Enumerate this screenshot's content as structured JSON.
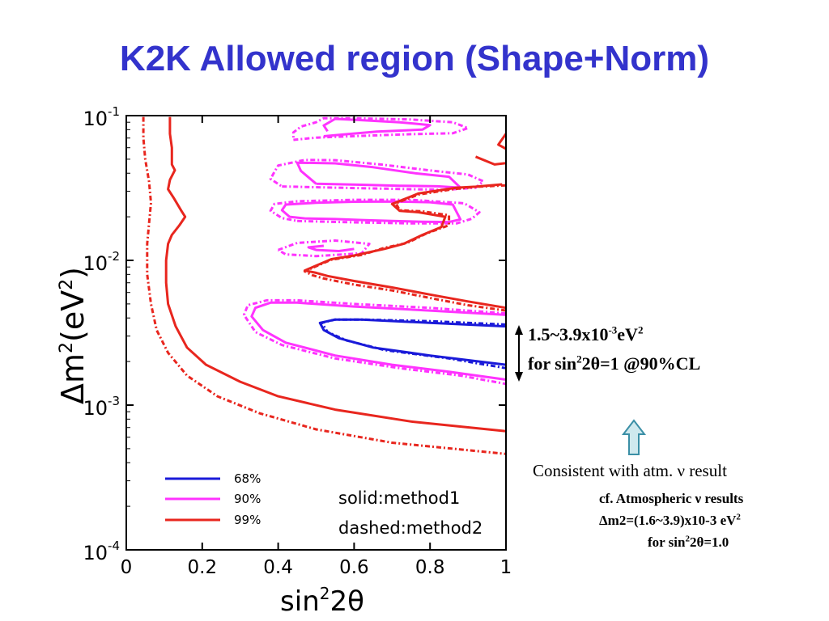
{
  "title": "K2K Allowed region (Shape+Norm)",
  "result": {
    "line1_base": "1.5~3.9x10",
    "line1_exp": "-3",
    "line1_unit": "eV",
    "line1_unit_exp": "2",
    "line2_pre": "for sin",
    "line2_exp": "2",
    "line2_post": "2θ=1 @90%CL"
  },
  "consistent": "Consistent with atm. ν result",
  "cf": {
    "line1": "cf. Atmospheric ν results",
    "line2": "Δm2=(1.6~3.9)x10-3 eV",
    "line2_exp": "2",
    "line3_pre": "for sin",
    "line3_exp": "2",
    "line3_post": "2θ=1.0"
  },
  "colors": {
    "title": "#3333cc",
    "c68": "#1a1ad9",
    "c90": "#ff33ff",
    "c99": "#e8261e"
  },
  "icons": [
    "up-arrow-outline-icon",
    "double-headed-arrow-icon"
  ],
  "chart_data": {
    "type": "contour",
    "xlabel_base": "sin",
    "xlabel_exp": "2",
    "xlabel_post": "2θ",
    "ylabel_base": "Δm",
    "ylabel_exp": "2",
    "ylabel_post": "(eV",
    "ylabel_exp2": "2",
    "ylabel_close": ")",
    "xlim": [
      0,
      1
    ],
    "ylim": [
      0.0001,
      0.1
    ],
    "yscale": "log",
    "xticks": [
      "0",
      "0.2",
      "0.4",
      "0.6",
      "0.8",
      "1"
    ],
    "yticks": [
      {
        "base": "10",
        "exp": "-1",
        "value": 0.1
      },
      {
        "base": "10",
        "exp": "-2",
        "value": 0.01
      },
      {
        "base": "10",
        "exp": "-3",
        "value": 0.001
      },
      {
        "base": "10",
        "exp": "-4",
        "value": 0.0001
      }
    ],
    "legend": [
      {
        "label": "68%",
        "color": "#1a1ad9"
      },
      {
        "label": "90%",
        "color": "#ff33ff"
      },
      {
        "label": "99%",
        "color": "#e8261e"
      }
    ],
    "annotation1": "solid:method1",
    "annotation2": "dashed:method2",
    "contours": [
      {
        "level": "68%",
        "color": "#1a1ad9",
        "style": "solid",
        "points": [
          [
            1.0,
            0.0035
          ],
          [
            0.8,
            0.0037
          ],
          [
            0.62,
            0.0039
          ],
          [
            0.55,
            0.0039
          ],
          [
            0.51,
            0.0037
          ],
          [
            0.52,
            0.0033
          ],
          [
            0.56,
            0.0029
          ],
          [
            0.65,
            0.0025
          ],
          [
            0.8,
            0.0022
          ],
          [
            1.0,
            0.0019
          ]
        ]
      },
      {
        "level": "68%",
        "color": "#1a1ad9",
        "style": "dashed",
        "points": [
          [
            1.0,
            0.0036
          ],
          [
            0.8,
            0.0038
          ],
          [
            0.62,
            0.0039
          ],
          [
            0.55,
            0.0039
          ],
          [
            0.515,
            0.0037
          ],
          [
            0.53,
            0.0032
          ],
          [
            0.58,
            0.0028
          ],
          [
            0.68,
            0.0024
          ],
          [
            0.85,
            0.0021
          ],
          [
            1.0,
            0.0018
          ]
        ]
      },
      {
        "level": "90%",
        "color": "#ff33ff",
        "style": "solid",
        "points": [
          [
            1.0,
            0.0042
          ],
          [
            0.8,
            0.0045
          ],
          [
            0.6,
            0.0048
          ],
          [
            0.45,
            0.0051
          ],
          [
            0.38,
            0.0051
          ],
          [
            0.34,
            0.0047
          ],
          [
            0.33,
            0.0041
          ],
          [
            0.36,
            0.0033
          ],
          [
            0.42,
            0.0027
          ],
          [
            0.55,
            0.0022
          ],
          [
            0.7,
            0.0019
          ],
          [
            0.85,
            0.0017
          ],
          [
            1.0,
            0.0015
          ]
        ]
      },
      {
        "level": "90%",
        "color": "#ff33ff",
        "style": "dashed",
        "points": [
          [
            1.0,
            0.0043
          ],
          [
            0.8,
            0.0047
          ],
          [
            0.6,
            0.005
          ],
          [
            0.45,
            0.0053
          ],
          [
            0.37,
            0.0053
          ],
          [
            0.32,
            0.0049
          ],
          [
            0.31,
            0.0042
          ],
          [
            0.34,
            0.0032
          ],
          [
            0.41,
            0.0026
          ],
          [
            0.55,
            0.0021
          ],
          [
            0.72,
            0.0018
          ],
          [
            0.88,
            0.0016
          ],
          [
            1.0,
            0.0014
          ]
        ]
      },
      {
        "level": "90%",
        "color": "#ff33ff",
        "style": "solid",
        "points": [
          [
            0.52,
            0.0126
          ],
          [
            0.48,
            0.0123
          ],
          [
            0.5,
            0.0118
          ],
          [
            0.56,
            0.0116
          ],
          [
            0.6,
            0.012
          ]
        ]
      },
      {
        "level": "90%",
        "color": "#ff33ff",
        "style": "dashed",
        "points": [
          [
            0.4,
            0.0118
          ],
          [
            0.45,
            0.0132
          ],
          [
            0.55,
            0.0137
          ],
          [
            0.64,
            0.013
          ],
          [
            0.62,
            0.0112
          ],
          [
            0.5,
            0.0107
          ],
          [
            0.42,
            0.011
          ],
          [
            0.4,
            0.0118
          ]
        ]
      },
      {
        "level": "90%",
        "color": "#ff33ff",
        "style": "solid",
        "points": [
          [
            0.47,
            0.0195
          ],
          [
            0.55,
            0.0193
          ],
          [
            0.62,
            0.019
          ],
          [
            0.7,
            0.0187
          ],
          [
            0.78,
            0.0185
          ],
          [
            0.85,
            0.0184
          ],
          [
            0.88,
            0.0192
          ],
          [
            0.86,
            0.0243
          ],
          [
            0.8,
            0.0252
          ],
          [
            0.7,
            0.0255
          ],
          [
            0.6,
            0.0254
          ],
          [
            0.5,
            0.025
          ],
          [
            0.42,
            0.0243
          ],
          [
            0.41,
            0.0222
          ],
          [
            0.43,
            0.02
          ],
          [
            0.47,
            0.0195
          ]
        ]
      },
      {
        "level": "90%",
        "color": "#ff33ff",
        "style": "dashed",
        "points": [
          [
            0.45,
            0.0187
          ],
          [
            0.6,
            0.0183
          ],
          [
            0.75,
            0.018
          ],
          [
            0.87,
            0.018
          ],
          [
            0.91,
            0.0194
          ],
          [
            0.93,
            0.0215
          ],
          [
            0.89,
            0.0248
          ],
          [
            0.75,
            0.0262
          ],
          [
            0.6,
            0.0262
          ],
          [
            0.45,
            0.0256
          ],
          [
            0.39,
            0.0245
          ],
          [
            0.38,
            0.022
          ],
          [
            0.41,
            0.0196
          ],
          [
            0.45,
            0.0187
          ]
        ]
      },
      {
        "level": "90%",
        "color": "#ff33ff",
        "style": "solid",
        "points": [
          [
            0.5,
            0.0338
          ],
          [
            0.62,
            0.0333
          ],
          [
            0.72,
            0.0328
          ],
          [
            0.82,
            0.0325
          ],
          [
            0.88,
            0.0318
          ],
          [
            0.85,
            0.0378
          ],
          [
            0.76,
            0.04
          ],
          [
            0.65,
            0.044
          ],
          [
            0.55,
            0.0468
          ],
          [
            0.45,
            0.0473
          ],
          [
            0.46,
            0.0415
          ],
          [
            0.5,
            0.0338
          ]
        ]
      },
      {
        "level": "90%",
        "color": "#ff33ff",
        "style": "dashed",
        "points": [
          [
            0.41,
            0.0324
          ],
          [
            0.55,
            0.0318
          ],
          [
            0.7,
            0.0312
          ],
          [
            0.84,
            0.0307
          ],
          [
            0.92,
            0.0318
          ],
          [
            0.94,
            0.0352
          ],
          [
            0.9,
            0.0392
          ],
          [
            0.8,
            0.0418
          ],
          [
            0.67,
            0.046
          ],
          [
            0.55,
            0.0492
          ],
          [
            0.47,
            0.0494
          ],
          [
            0.4,
            0.0452
          ],
          [
            0.39,
            0.0408
          ],
          [
            0.38,
            0.0365
          ],
          [
            0.41,
            0.0324
          ]
        ]
      },
      {
        "level": "90%",
        "color": "#ff33ff",
        "style": "solid",
        "points": [
          [
            0.52,
            0.072
          ],
          [
            0.57,
            0.074
          ],
          [
            0.66,
            0.0775
          ],
          [
            0.78,
            0.08
          ],
          [
            0.8,
            0.086
          ],
          [
            0.72,
            0.09
          ],
          [
            0.62,
            0.093
          ],
          [
            0.55,
            0.095
          ],
          [
            0.52,
            0.0855
          ],
          [
            0.53,
            0.078
          ]
        ]
      },
      {
        "level": "90%",
        "color": "#ff33ff",
        "style": "dashed",
        "points": [
          [
            0.44,
            0.068
          ],
          [
            0.5,
            0.0705
          ],
          [
            0.62,
            0.0725
          ],
          [
            0.75,
            0.0745
          ],
          [
            0.86,
            0.0755
          ],
          [
            0.9,
            0.082
          ],
          [
            0.86,
            0.09
          ],
          [
            0.75,
            0.094
          ],
          [
            0.6,
            0.096
          ],
          [
            0.52,
            0.096
          ],
          [
            0.5,
            0.09
          ],
          [
            0.46,
            0.084
          ],
          [
            0.44,
            0.0765
          ],
          [
            0.44,
            0.068
          ]
        ]
      },
      {
        "level": "99%",
        "color": "#e8261e",
        "style": "solid",
        "points": [
          [
            0.115,
            0.098
          ],
          [
            0.115,
            0.075
          ],
          [
            0.12,
            0.06
          ],
          [
            0.12,
            0.046
          ],
          [
            0.128,
            0.042
          ],
          [
            0.115,
            0.036
          ],
          [
            0.11,
            0.031
          ],
          [
            0.125,
            0.027
          ],
          [
            0.145,
            0.022
          ],
          [
            0.155,
            0.02
          ],
          [
            0.14,
            0.0175
          ],
          [
            0.12,
            0.015
          ],
          [
            0.11,
            0.013
          ],
          [
            0.105,
            0.01
          ],
          [
            0.105,
            0.007
          ],
          [
            0.11,
            0.005
          ],
          [
            0.13,
            0.0035
          ],
          [
            0.16,
            0.0025
          ],
          [
            0.21,
            0.0019
          ],
          [
            0.3,
            0.00145
          ],
          [
            0.4,
            0.00115
          ],
          [
            0.55,
            0.00093
          ],
          [
            0.75,
            0.00077
          ],
          [
            1.0,
            0.00066
          ]
        ]
      },
      {
        "level": "99%",
        "color": "#e8261e",
        "style": "dashed",
        "points": [
          [
            0.045,
            0.098
          ],
          [
            0.045,
            0.07
          ],
          [
            0.05,
            0.05
          ],
          [
            0.06,
            0.035
          ],
          [
            0.065,
            0.025
          ],
          [
            0.06,
            0.018
          ],
          [
            0.055,
            0.013
          ],
          [
            0.055,
            0.008
          ],
          [
            0.065,
            0.005
          ],
          [
            0.08,
            0.0033
          ],
          [
            0.11,
            0.0023
          ],
          [
            0.16,
            0.0016
          ],
          [
            0.24,
            0.00115
          ],
          [
            0.35,
            0.00088
          ],
          [
            0.5,
            0.00068
          ],
          [
            0.7,
            0.00055
          ],
          [
            1.0,
            0.00046
          ]
        ]
      },
      {
        "level": "99%",
        "color": "#e8261e",
        "style": "solid",
        "points": [
          [
            1.0,
            0.0047
          ],
          [
            0.9,
            0.0052
          ],
          [
            0.8,
            0.0058
          ],
          [
            0.7,
            0.0065
          ],
          [
            0.6,
            0.0072
          ],
          [
            0.53,
            0.0078
          ],
          [
            0.5,
            0.0082
          ],
          [
            0.47,
            0.0085
          ],
          [
            0.5,
            0.0092
          ],
          [
            0.54,
            0.0102
          ],
          [
            0.6,
            0.0108
          ],
          [
            0.68,
            0.012
          ],
          [
            0.73,
            0.013
          ],
          [
            0.78,
            0.015
          ],
          [
            0.83,
            0.017
          ],
          [
            0.84,
            0.02
          ],
          [
            0.77,
            0.0215
          ],
          [
            0.72,
            0.022
          ],
          [
            0.7,
            0.0245
          ],
          [
            0.77,
            0.029
          ],
          [
            0.87,
            0.0318
          ],
          [
            0.92,
            0.0323
          ],
          [
            0.99,
            0.0335
          ]
        ]
      },
      {
        "level": "99%",
        "color": "#e8261e",
        "style": "dashed",
        "points": [
          [
            1.0,
            0.0045
          ],
          [
            0.9,
            0.0049
          ],
          [
            0.8,
            0.0055
          ],
          [
            0.7,
            0.0062
          ],
          [
            0.6,
            0.0068
          ],
          [
            0.52,
            0.0075
          ],
          [
            0.49,
            0.0079
          ],
          [
            0.47,
            0.0084
          ],
          [
            0.5,
            0.0091
          ],
          [
            0.54,
            0.0101
          ],
          [
            0.62,
            0.0109
          ],
          [
            0.68,
            0.0122
          ],
          [
            0.74,
            0.0132
          ],
          [
            0.79,
            0.0153
          ],
          [
            0.85,
            0.0175
          ],
          [
            0.85,
            0.0205
          ],
          [
            0.78,
            0.0218
          ],
          [
            0.72,
            0.0222
          ],
          [
            0.71,
            0.0248
          ],
          [
            0.77,
            0.0285
          ],
          [
            0.86,
            0.031
          ],
          [
            0.92,
            0.0322
          ],
          [
            1.0,
            0.033
          ]
        ]
      },
      {
        "level": "99%",
        "color": "#e8261e",
        "style": "solid",
        "points": [
          [
            0.92,
            0.052
          ],
          [
            0.97,
            0.046
          ],
          [
            1.0,
            0.047
          ]
        ]
      },
      {
        "level": "99%",
        "color": "#e8261e",
        "style": "solid",
        "points": [
          [
            1.0,
            0.075
          ],
          [
            0.98,
            0.063
          ],
          [
            1.0,
            0.059
          ]
        ]
      }
    ]
  }
}
